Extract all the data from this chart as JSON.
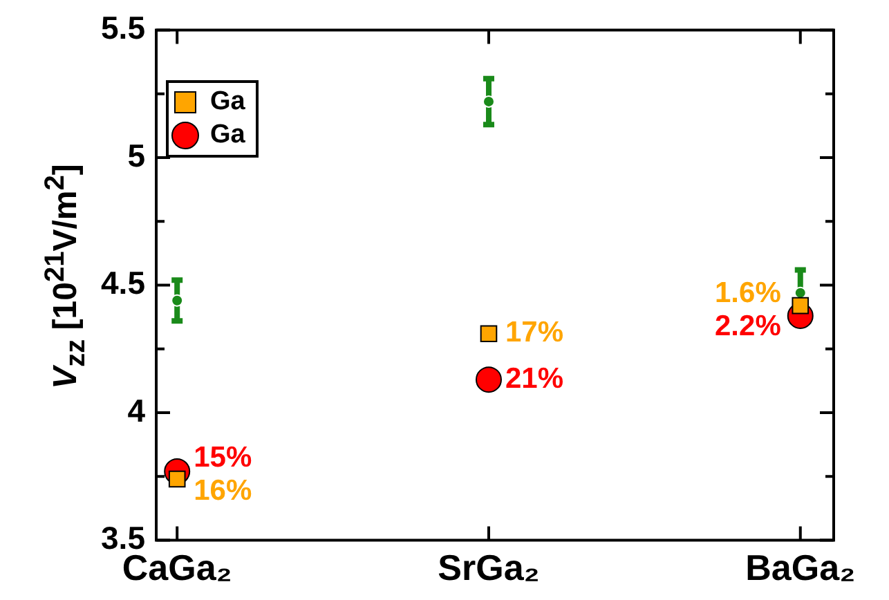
{
  "chart_data": {
    "type": "scatter",
    "ylabel": "V$_{zz}$ [10$^{21}$V/m$^{2}$]",
    "categories": [
      "CaGa₂",
      "SrGa₂",
      "BaGa₂"
    ],
    "series": [
      {
        "name": "Ga",
        "color": "#ffa500",
        "marker": "square",
        "values": [
          3.74,
          4.31,
          4.42
        ]
      },
      {
        "name": "Ga",
        "color": "#ff0000",
        "marker": "circle",
        "values": [
          3.77,
          4.13,
          4.38
        ]
      },
      {
        "color": "#1a8a1a",
        "marker": "circle",
        "values": [
          4.44,
          5.22,
          4.47
        ],
        "errors": [
          0.08,
          0.09,
          0.09
        ]
      }
    ],
    "annotations": [
      {
        "text": "16%",
        "x": "CaGa₂",
        "y": 3.74
      },
      {
        "text": "17%",
        "x": "SrGa₂",
        "y": 4.31
      },
      {
        "text": "1.6%",
        "x": "BaGa₂",
        "y": 4.42
      },
      {
        "text": "15%",
        "x": "CaGa₂",
        "y": 3.77
      },
      {
        "text": "21%",
        "x": "SrGa₂",
        "y": 4.13
      },
      {
        "text": "2.2%",
        "x": "BaGa₂",
        "y": 4.38
      }
    ],
    "ylim": [
      3.5,
      5.5
    ],
    "yticks": [
      3.5,
      {
        "value": 3.75,
        "label": null
      },
      4,
      {
        "value": 4.25,
        "label": null
      },
      4.5,
      {
        "value": 4.75,
        "label": null
      },
      5,
      {
        "value": 5.25,
        "label": null
      },
      5.5
    ],
    "grid": false,
    "legend": "top left"
  }
}
